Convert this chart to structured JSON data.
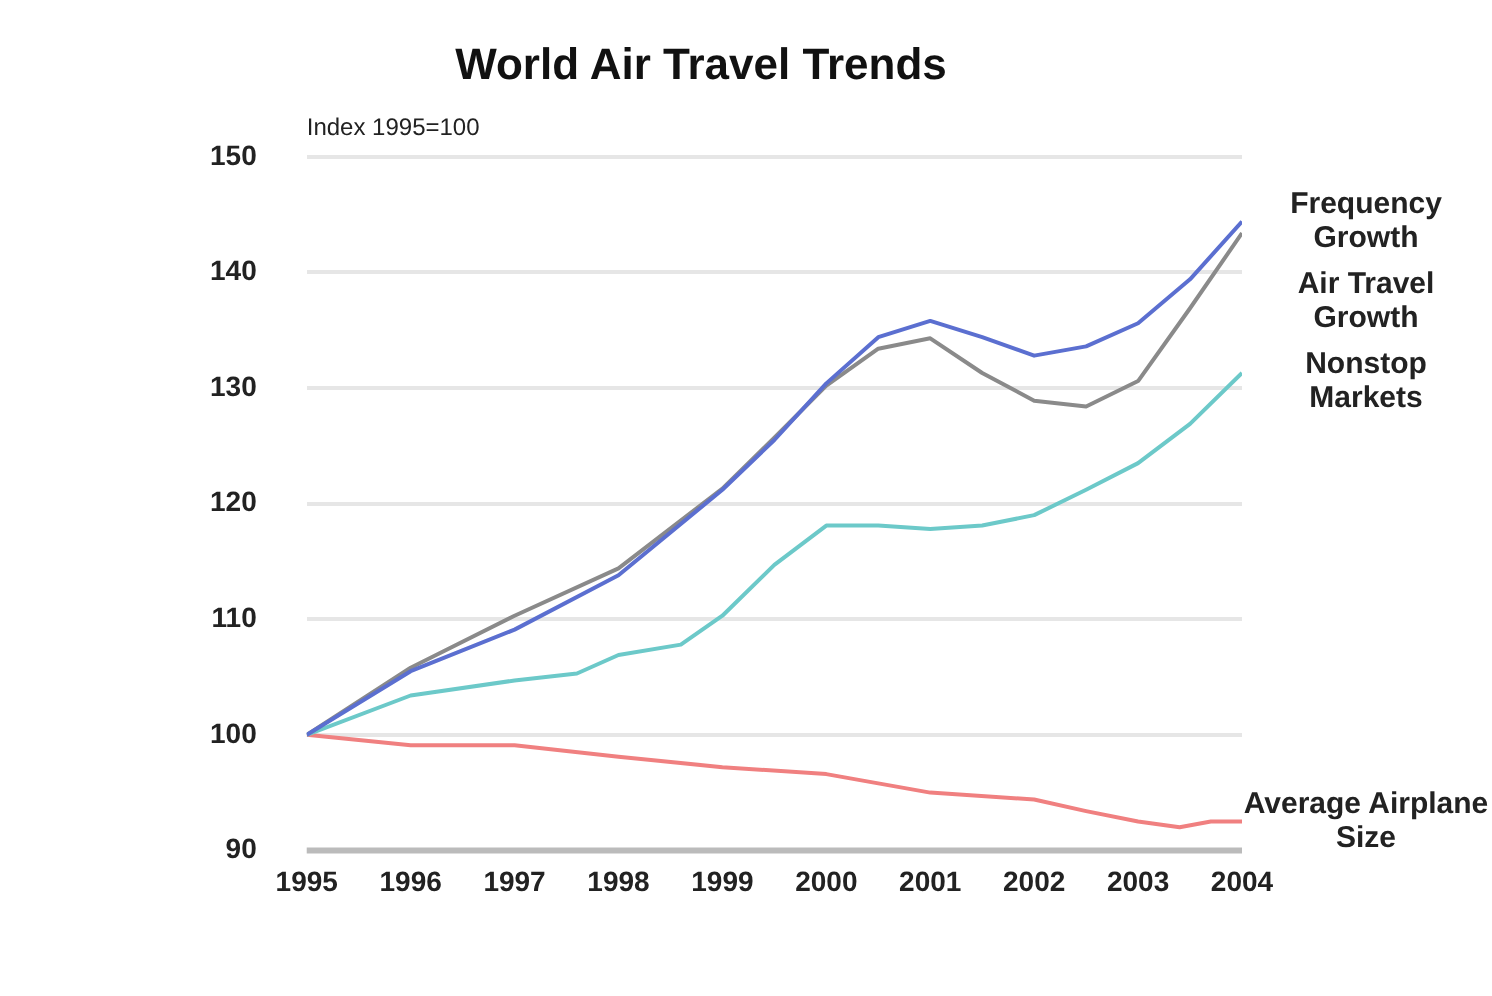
{
  "chart_data": {
    "type": "line",
    "title": "World Air Travel Trends",
    "ylabel": "Index 1995=100",
    "xlim": [
      1995,
      2004
    ],
    "xticks": [
      1995,
      1996,
      1997,
      1998,
      1999,
      2000,
      2001,
      2002,
      2003,
      2004
    ],
    "ylim": [
      90,
      150
    ],
    "yticks": [
      90,
      100,
      110,
      120,
      130,
      140,
      150
    ],
    "grid": "y",
    "legend": false,
    "marker": "none",
    "line_style": "solid",
    "series": [
      {
        "name": "Frequency Growth",
        "color": "#5b6fd0",
        "x": [
          1995,
          1996,
          1997,
          1998,
          1999,
          1999.5,
          2000,
          2000.5,
          2001,
          2001.5,
          2002,
          2002.5,
          2003,
          2003.5,
          2004
        ],
        "values": [
          100,
          105.5,
          109.1,
          113.8,
          121.2,
          125.5,
          130.4,
          134.4,
          135.8,
          134.4,
          132.8,
          133.6,
          135.6,
          139.4,
          144.4
        ]
      },
      {
        "name": "Air Travel Growth",
        "color": "#8a8a8a",
        "x": [
          1995,
          1996,
          1997,
          1998,
          1999,
          1999.5,
          2000,
          2000.5,
          2001,
          2001.5,
          2002,
          2002.5,
          2003,
          2003.5,
          2004
        ],
        "values": [
          100,
          105.8,
          110.3,
          114.4,
          121.3,
          125.7,
          130.2,
          133.4,
          134.3,
          131.3,
          128.9,
          128.4,
          130.6,
          136.9,
          143.4
        ]
      },
      {
        "name": "Nonstop Markets",
        "color": "#6cc9c9",
        "x": [
          1995,
          1996,
          1997,
          1997.6,
          1998,
          1998.6,
          1999,
          1999.5,
          2000,
          2000.5,
          2001,
          2001.5,
          2002,
          2002.5,
          2003,
          2003.5,
          2004
        ],
        "values": [
          100,
          103.4,
          104.7,
          105.3,
          106.9,
          107.8,
          110.3,
          114.7,
          118.1,
          118.1,
          117.8,
          118.1,
          119,
          121.2,
          123.5,
          126.9,
          131.3
        ]
      },
      {
        "name": "Average Airplane Size",
        "color": "#f08080",
        "x": [
          1995,
          1996,
          1997,
          1998,
          1999,
          2000,
          2001,
          2002,
          2002.5,
          2003,
          2003.4,
          2003.7,
          2004
        ],
        "values": [
          100,
          99.1,
          99.1,
          98.1,
          97.2,
          96.6,
          95,
          94.4,
          93.4,
          92.5,
          92,
          92.5,
          92.5
        ]
      }
    ]
  }
}
